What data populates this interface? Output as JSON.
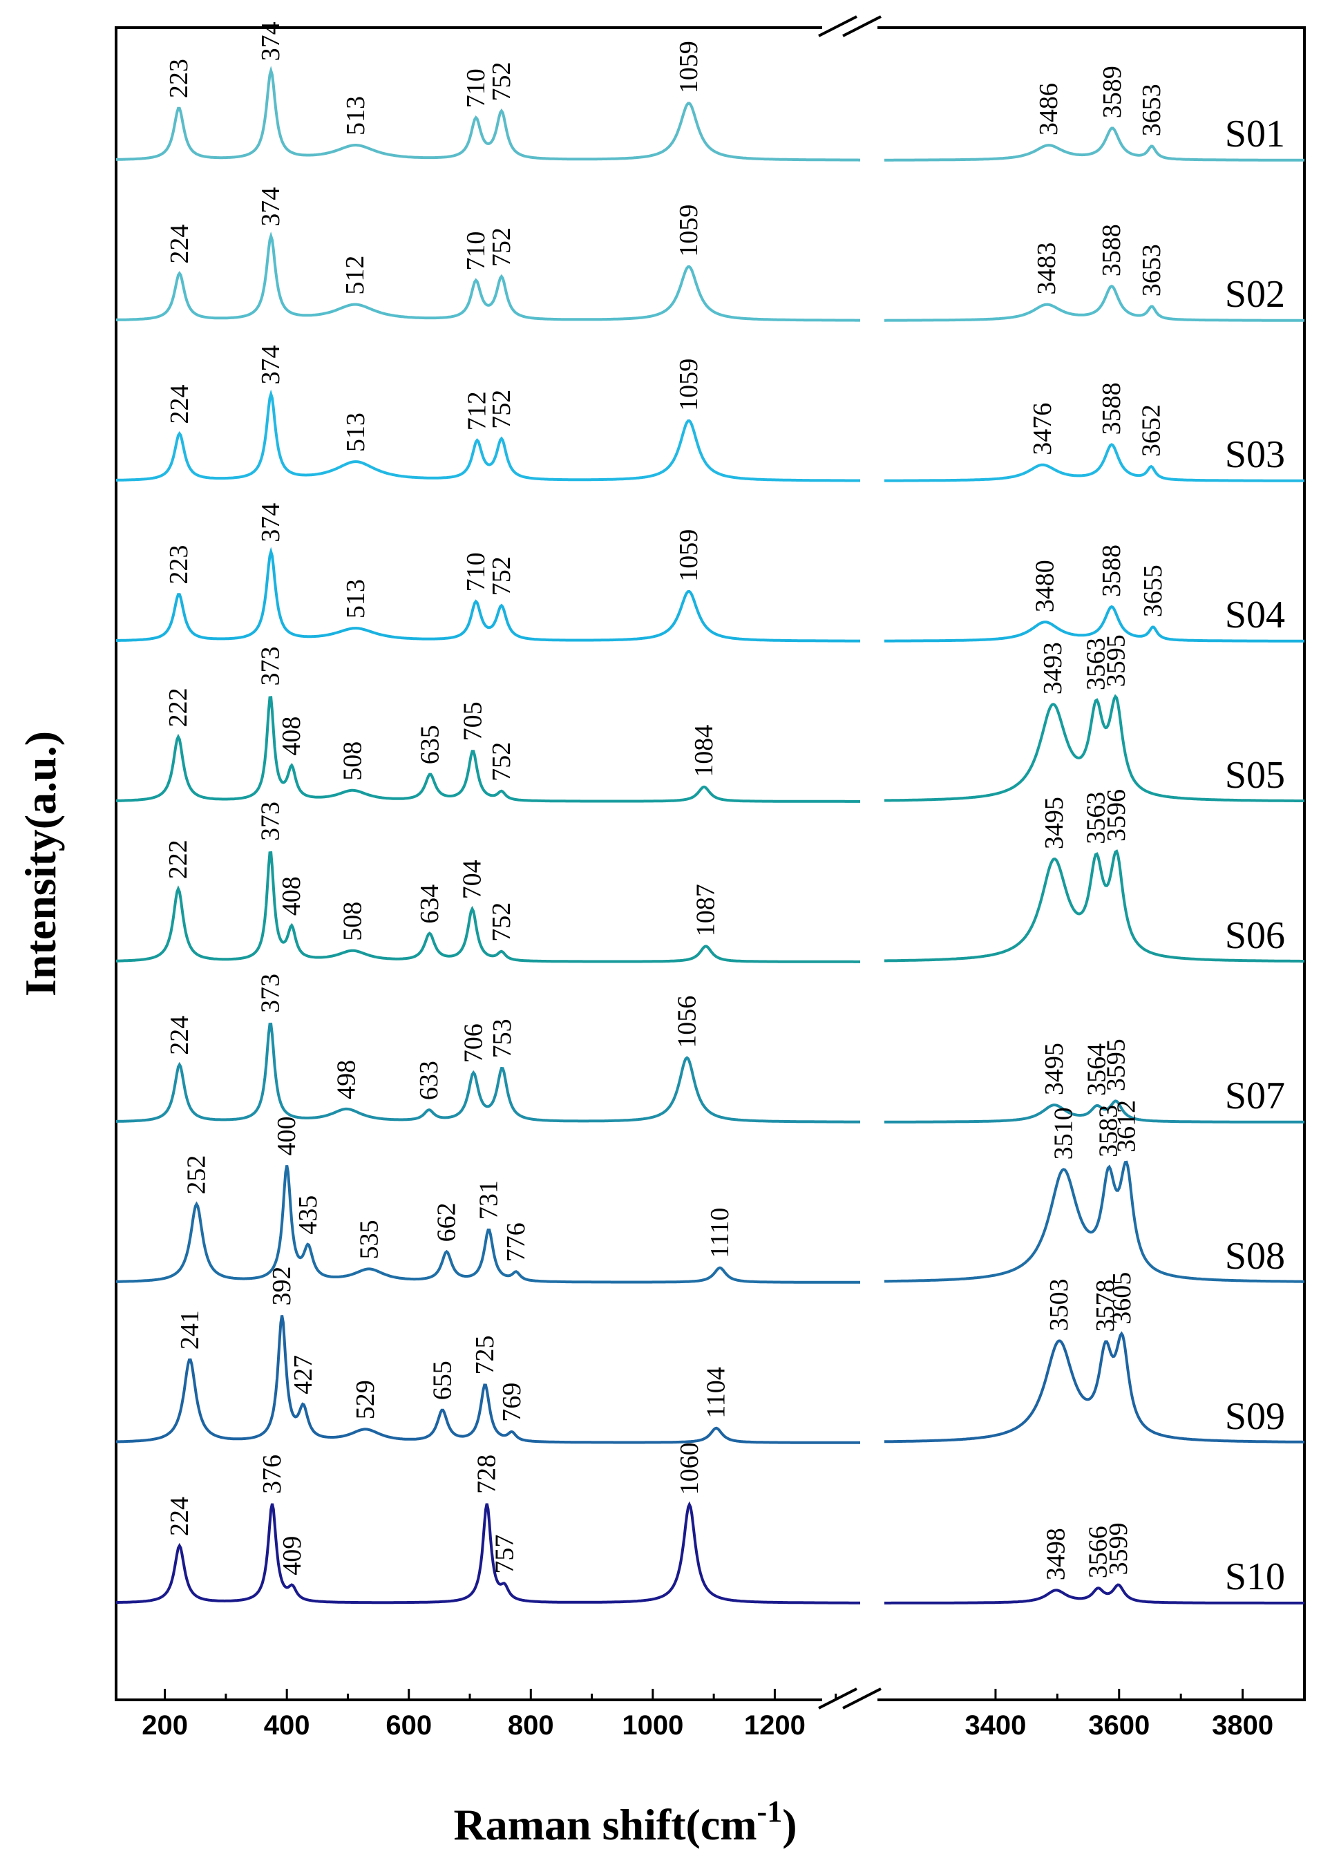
{
  "chart_data": {
    "type": "line",
    "xlabel_main": "Raman shift(cm",
    "xlabel_sup": "-1",
    "xlabel_close": ")",
    "ylabel": "Intensity(a.u.)",
    "xlim_left": [
      120,
      1340
    ],
    "xlim_right": [
      3220,
      3900
    ],
    "xticks_left": [
      200,
      400,
      600,
      800,
      1000,
      1200
    ],
    "xticks_right": [
      3400,
      3600,
      3800
    ],
    "series": [
      {
        "name": "S01",
        "color": "#5bbcc9",
        "peaks": [
          {
            "x": 223,
            "h": 0.5,
            "w": 10,
            "label": "223"
          },
          {
            "x": 374,
            "h": 0.85,
            "w": 9,
            "label": "374"
          },
          {
            "x": 513,
            "h": 0.14,
            "w": 40,
            "label": "513"
          },
          {
            "x": 710,
            "h": 0.38,
            "w": 10,
            "label": "710"
          },
          {
            "x": 752,
            "h": 0.45,
            "w": 10,
            "label": "752"
          },
          {
            "x": 1059,
            "h": 0.55,
            "w": 18,
            "label": "1059"
          },
          {
            "x": 3486,
            "h": 0.14,
            "w": 28,
            "label": "3486"
          },
          {
            "x": 3589,
            "h": 0.3,
            "w": 14,
            "label": "3589"
          },
          {
            "x": 3653,
            "h": 0.12,
            "w": 8,
            "label": "3653"
          }
        ]
      },
      {
        "name": "S02",
        "color": "#56bdcc",
        "peaks": [
          {
            "x": 224,
            "h": 0.45,
            "w": 10,
            "label": "224"
          },
          {
            "x": 374,
            "h": 0.8,
            "w": 9,
            "label": "374"
          },
          {
            "x": 512,
            "h": 0.15,
            "w": 40,
            "label": "512"
          },
          {
            "x": 710,
            "h": 0.36,
            "w": 10,
            "label": "710"
          },
          {
            "x": 752,
            "h": 0.4,
            "w": 10,
            "label": "752"
          },
          {
            "x": 1059,
            "h": 0.52,
            "w": 18,
            "label": "1059"
          },
          {
            "x": 3483,
            "h": 0.15,
            "w": 28,
            "label": "3483"
          },
          {
            "x": 3588,
            "h": 0.32,
            "w": 14,
            "label": "3588"
          },
          {
            "x": 3653,
            "h": 0.12,
            "w": 8,
            "label": "3653"
          }
        ]
      },
      {
        "name": "S03",
        "color": "#22b8e4",
        "peaks": [
          {
            "x": 224,
            "h": 0.45,
            "w": 10,
            "label": "224"
          },
          {
            "x": 374,
            "h": 0.82,
            "w": 9,
            "label": "374"
          },
          {
            "x": 513,
            "h": 0.18,
            "w": 40,
            "label": "513"
          },
          {
            "x": 712,
            "h": 0.36,
            "w": 10,
            "label": "712"
          },
          {
            "x": 752,
            "h": 0.38,
            "w": 10,
            "label": "752"
          },
          {
            "x": 1059,
            "h": 0.58,
            "w": 18,
            "label": "1059"
          },
          {
            "x": 3476,
            "h": 0.15,
            "w": 28,
            "label": "3476"
          },
          {
            "x": 3588,
            "h": 0.34,
            "w": 14,
            "label": "3588"
          },
          {
            "x": 3652,
            "h": 0.12,
            "w": 8,
            "label": "3652"
          }
        ]
      },
      {
        "name": "S04",
        "color": "#1ab2e0",
        "peaks": [
          {
            "x": 223,
            "h": 0.45,
            "w": 10,
            "label": "223"
          },
          {
            "x": 374,
            "h": 0.85,
            "w": 9,
            "label": "374"
          },
          {
            "x": 513,
            "h": 0.12,
            "w": 40,
            "label": "513"
          },
          {
            "x": 710,
            "h": 0.36,
            "w": 10,
            "label": "710"
          },
          {
            "x": 752,
            "h": 0.32,
            "w": 10,
            "label": "752"
          },
          {
            "x": 1059,
            "h": 0.48,
            "w": 18,
            "label": "1059"
          },
          {
            "x": 3480,
            "h": 0.18,
            "w": 28,
            "label": "3480"
          },
          {
            "x": 3588,
            "h": 0.32,
            "w": 14,
            "label": "3588"
          },
          {
            "x": 3655,
            "h": 0.12,
            "w": 8,
            "label": "3655"
          }
        ]
      },
      {
        "name": "S05",
        "color": "#179c9e",
        "peaks": [
          {
            "x": 222,
            "h": 0.62,
            "w": 10,
            "label": "222"
          },
          {
            "x": 373,
            "h": 1.0,
            "w": 7,
            "label": "373"
          },
          {
            "x": 408,
            "h": 0.3,
            "w": 8,
            "label": "408"
          },
          {
            "x": 508,
            "h": 0.1,
            "w": 30,
            "label": "508"
          },
          {
            "x": 635,
            "h": 0.25,
            "w": 10,
            "label": "635"
          },
          {
            "x": 705,
            "h": 0.48,
            "w": 9,
            "label": "705"
          },
          {
            "x": 752,
            "h": 0.08,
            "w": 8,
            "label": "752"
          },
          {
            "x": 1084,
            "h": 0.14,
            "w": 12,
            "label": "1084"
          },
          {
            "x": 3493,
            "h": 0.9,
            "w": 26,
            "label": "3493"
          },
          {
            "x": 3563,
            "h": 0.75,
            "w": 13,
            "label": "3563"
          },
          {
            "x": 3595,
            "h": 0.85,
            "w": 13,
            "label": "3595"
          }
        ]
      },
      {
        "name": "S06",
        "color": "#189a9b",
        "peaks": [
          {
            "x": 222,
            "h": 0.7,
            "w": 10,
            "label": "222"
          },
          {
            "x": 373,
            "h": 1.05,
            "w": 7,
            "label": "373"
          },
          {
            "x": 408,
            "h": 0.3,
            "w": 8,
            "label": "408"
          },
          {
            "x": 508,
            "h": 0.1,
            "w": 30,
            "label": "508"
          },
          {
            "x": 634,
            "h": 0.26,
            "w": 10,
            "label": "634"
          },
          {
            "x": 704,
            "h": 0.5,
            "w": 9,
            "label": "704"
          },
          {
            "x": 752,
            "h": 0.08,
            "w": 8,
            "label": "752"
          },
          {
            "x": 1087,
            "h": 0.15,
            "w": 12,
            "label": "1087"
          },
          {
            "x": 3495,
            "h": 0.95,
            "w": 26,
            "label": "3495"
          },
          {
            "x": 3563,
            "h": 0.8,
            "w": 13,
            "label": "3563"
          },
          {
            "x": 3596,
            "h": 0.9,
            "w": 13,
            "label": "3596"
          }
        ]
      },
      {
        "name": "S07",
        "color": "#1f8fa8",
        "peaks": [
          {
            "x": 224,
            "h": 0.55,
            "w": 10,
            "label": "224"
          },
          {
            "x": 373,
            "h": 0.95,
            "w": 8,
            "label": "373"
          },
          {
            "x": 498,
            "h": 0.12,
            "w": 30,
            "label": "498"
          },
          {
            "x": 633,
            "h": 0.1,
            "w": 10,
            "label": "633"
          },
          {
            "x": 706,
            "h": 0.45,
            "w": 10,
            "label": "706"
          },
          {
            "x": 753,
            "h": 0.5,
            "w": 10,
            "label": "753"
          },
          {
            "x": 1056,
            "h": 0.62,
            "w": 16,
            "label": "1056"
          },
          {
            "x": 3495,
            "h": 0.16,
            "w": 24,
            "label": "3495"
          },
          {
            "x": 3564,
            "h": 0.12,
            "w": 12,
            "label": "3564"
          },
          {
            "x": 3595,
            "h": 0.18,
            "w": 12,
            "label": "3595"
          }
        ]
      },
      {
        "name": "S08",
        "color": "#1f6ea6",
        "peaks": [
          {
            "x": 252,
            "h": 0.75,
            "w": 12,
            "label": "252"
          },
          {
            "x": 400,
            "h": 1.1,
            "w": 8,
            "label": "400"
          },
          {
            "x": 435,
            "h": 0.3,
            "w": 9,
            "label": "435"
          },
          {
            "x": 535,
            "h": 0.12,
            "w": 30,
            "label": "535"
          },
          {
            "x": 662,
            "h": 0.28,
            "w": 10,
            "label": "662"
          },
          {
            "x": 731,
            "h": 0.5,
            "w": 9,
            "label": "731"
          },
          {
            "x": 776,
            "h": 0.08,
            "w": 8,
            "label": "776"
          },
          {
            "x": 1110,
            "h": 0.14,
            "w": 12,
            "label": "1110"
          },
          {
            "x": 3510,
            "h": 1.05,
            "w": 28,
            "label": "3510"
          },
          {
            "x": 3583,
            "h": 0.82,
            "w": 13,
            "label": "3583"
          },
          {
            "x": 3612,
            "h": 0.95,
            "w": 13,
            "label": "3612"
          }
        ]
      },
      {
        "name": "S09",
        "color": "#1d64a2",
        "peaks": [
          {
            "x": 241,
            "h": 0.8,
            "w": 12,
            "label": "241"
          },
          {
            "x": 392,
            "h": 1.2,
            "w": 8,
            "label": "392"
          },
          {
            "x": 427,
            "h": 0.3,
            "w": 9,
            "label": "427"
          },
          {
            "x": 529,
            "h": 0.12,
            "w": 30,
            "label": "529"
          },
          {
            "x": 655,
            "h": 0.3,
            "w": 10,
            "label": "655"
          },
          {
            "x": 725,
            "h": 0.55,
            "w": 9,
            "label": "725"
          },
          {
            "x": 769,
            "h": 0.08,
            "w": 8,
            "label": "769"
          },
          {
            "x": 1104,
            "h": 0.14,
            "w": 12,
            "label": "1104"
          },
          {
            "x": 3503,
            "h": 0.95,
            "w": 28,
            "label": "3503"
          },
          {
            "x": 3578,
            "h": 0.7,
            "w": 13,
            "label": "3578"
          },
          {
            "x": 3605,
            "h": 0.85,
            "w": 13,
            "label": "3605"
          }
        ]
      },
      {
        "name": "S10",
        "color": "#1a1a8c",
        "peaks": [
          {
            "x": 224,
            "h": 0.55,
            "w": 10,
            "label": "224"
          },
          {
            "x": 376,
            "h": 0.95,
            "w": 8,
            "label": "376"
          },
          {
            "x": 409,
            "h": 0.12,
            "w": 8,
            "label": "409"
          },
          {
            "x": 728,
            "h": 0.95,
            "w": 8,
            "label": "728"
          },
          {
            "x": 757,
            "h": 0.12,
            "w": 8,
            "label": "757"
          },
          {
            "x": 1060,
            "h": 0.95,
            "w": 12,
            "label": "1060"
          },
          {
            "x": 3498,
            "h": 0.12,
            "w": 20,
            "label": "3498"
          },
          {
            "x": 3566,
            "h": 0.12,
            "w": 11,
            "label": "3566"
          },
          {
            "x": 3599,
            "h": 0.16,
            "w": 11,
            "label": "3599"
          }
        ]
      }
    ]
  }
}
